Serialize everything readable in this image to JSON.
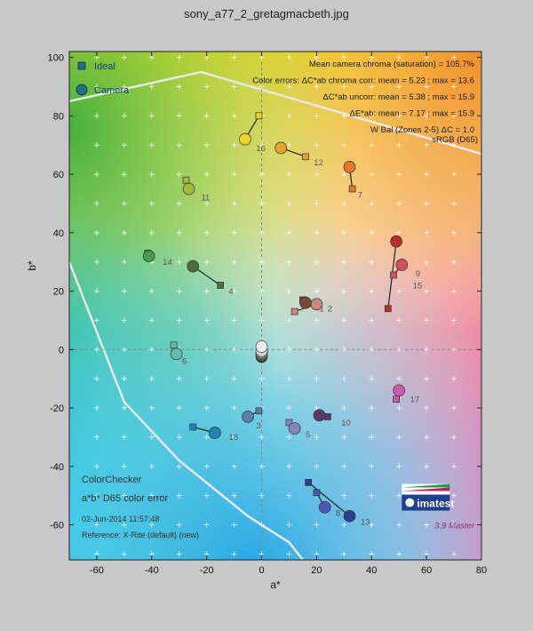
{
  "title": "sony_a77_2_gretagmacbeth.jpg",
  "chart_data": {
    "type": "scatter",
    "xlabel": "a*",
    "ylabel": "b*",
    "xlim": [
      -70,
      80
    ],
    "ylim": [
      -72,
      102
    ],
    "xticks": [
      -60,
      -40,
      -20,
      0,
      20,
      40,
      60,
      80
    ],
    "yticks": [
      -60,
      -40,
      -20,
      0,
      20,
      40,
      60,
      80,
      100
    ],
    "grid": true,
    "legend": {
      "placement": "top-left",
      "entries": [
        {
          "label": "Ideal",
          "marker": "square"
        },
        {
          "label": "Camera",
          "marker": "circle"
        }
      ]
    },
    "info_lines": [
      "Mean camera chroma (saturation) = 105.7%",
      "Color errors: ΔC*ab chroma corr:  mean = 5.23 ;  max = 13.6",
      "ΔC*ab uncorr:  mean = 5.38 ;  max = 15.9",
      "ΔE*ab:  mean = 7.17 ;  max = 15.9",
      "W Bal (Zones 2-5) ΔC = 1.0",
      "sRGB (D65)"
    ],
    "bottom_left": [
      "ColorChecker",
      "a*b* D65 color error",
      "02-Jun-2014 11:57:48",
      "Reference: X-Rite (default) (new)"
    ],
    "logo": "imatest",
    "version": "3.9 Master",
    "gamut_label": "sRGB (D65)",
    "series": [
      {
        "name": "Ideal",
        "marker": "square"
      },
      {
        "name": "Camera",
        "marker": "circle"
      }
    ],
    "patches": [
      {
        "id": "1",
        "ideal": [
          15,
          17
        ],
        "camera": [
          16,
          16
        ],
        "color": "#7a4a38"
      },
      {
        "id": "2",
        "ideal": [
          12,
          13
        ],
        "camera": [
          20,
          15.5
        ],
        "color": "#c88a78"
      },
      {
        "id": "3",
        "ideal": [
          -1,
          -21
        ],
        "camera": [
          -5,
          -23
        ],
        "color": "#5f7fa6"
      },
      {
        "id": "4",
        "ideal": [
          -15,
          22
        ],
        "camera": [
          -25,
          28.5
        ],
        "color": "#4f6d38"
      },
      {
        "id": "5",
        "ideal": [
          10,
          -25
        ],
        "camera": [
          12,
          -27
        ],
        "color": "#8488b8"
      },
      {
        "id": "6",
        "ideal": [
          -32,
          1.5
        ],
        "camera": [
          -31,
          -1.5
        ],
        "color": "#62bcab"
      },
      {
        "id": "7",
        "ideal": [
          33,
          55
        ],
        "camera": [
          32,
          62.5
        ],
        "color": "#e07a2a"
      },
      {
        "id": "8",
        "ideal": [
          20,
          -49
        ],
        "camera": [
          23,
          -54
        ],
        "color": "#4a5ab0"
      },
      {
        "id": "9",
        "ideal": [
          48,
          25.5
        ],
        "camera": [
          51,
          29
        ],
        "color": "#d05060"
      },
      {
        "id": "10",
        "ideal": [
          24,
          -23
        ],
        "camera": [
          21,
          -22.5
        ],
        "color": "#5a3a6a"
      },
      {
        "id": "11",
        "ideal": [
          -27.5,
          58
        ],
        "camera": [
          -26.5,
          55
        ],
        "color": "#9cbc3a"
      },
      {
        "id": "12",
        "ideal": [
          16,
          66
        ],
        "camera": [
          7,
          69
        ],
        "color": "#e8a030"
      },
      {
        "id": "13",
        "ideal": [
          17,
          -45.5
        ],
        "camera": [
          32,
          -57
        ],
        "color": "#2c3e94"
      },
      {
        "id": "14",
        "ideal": [
          -41.5,
          33
        ],
        "camera": [
          -41,
          32
        ],
        "color": "#469a4c"
      },
      {
        "id": "15",
        "ideal": [
          46,
          14
        ],
        "camera": [
          49,
          37
        ],
        "color": "#b82e2e"
      },
      {
        "id": "16",
        "ideal": [
          -1,
          80
        ],
        "camera": [
          -6,
          72
        ],
        "color": "#ead42a"
      },
      {
        "id": "17",
        "ideal": [
          49,
          -17
        ],
        "camera": [
          50,
          -14
        ],
        "color": "#c85aa8"
      },
      {
        "id": "18",
        "ideal": [
          -25,
          -26.5
        ],
        "camera": [
          -17,
          -28.5
        ],
        "color": "#1e86b0"
      },
      {
        "id": "19",
        "ideal": [
          0,
          1
        ],
        "camera": [
          0,
          1
        ],
        "color": "#f2f2f2"
      },
      {
        "id": "20",
        "ideal": [
          0,
          0
        ],
        "camera": [
          0,
          -0.5
        ],
        "color": "#cfcfcf"
      },
      {
        "id": "21",
        "ideal": [
          0,
          -0.5
        ],
        "camera": [
          0,
          -1
        ],
        "color": "#a3a3a3"
      },
      {
        "id": "22",
        "ideal": [
          0,
          -1
        ],
        "camera": [
          0,
          -1.5
        ],
        "color": "#7a7a7a"
      },
      {
        "id": "23",
        "ideal": [
          0,
          -1.5
        ],
        "camera": [
          0,
          -2
        ],
        "color": "#555555"
      },
      {
        "id": "24",
        "ideal": [
          0,
          -2
        ],
        "camera": [
          0,
          -2.5
        ],
        "color": "#333333"
      }
    ],
    "patch_labels": [
      {
        "text": "1",
        "at": [
          21,
          13
        ]
      },
      {
        "text": "2",
        "at": [
          24,
          13
        ]
      },
      {
        "text": "3",
        "at": [
          -2,
          -27
        ]
      },
      {
        "text": "4",
        "at": [
          -12,
          19
        ]
      },
      {
        "text": "5",
        "at": [
          16,
          -30
        ]
      },
      {
        "text": "6",
        "at": [
          -29,
          -5
        ]
      },
      {
        "text": "7",
        "at": [
          35,
          52
        ]
      },
      {
        "text": "8",
        "at": [
          27,
          -57
        ]
      },
      {
        "text": "9",
        "at": [
          56,
          25
        ]
      },
      {
        "text": "10",
        "at": [
          29,
          -26
        ]
      },
      {
        "text": "11",
        "at": [
          -22,
          51
        ]
      },
      {
        "text": "12",
        "at": [
          19,
          63
        ]
      },
      {
        "text": "13",
        "at": [
          36,
          -60
        ]
      },
      {
        "text": "14",
        "at": [
          -36,
          29
        ]
      },
      {
        "text": "15",
        "at": [
          55,
          21
        ]
      },
      {
        "text": "16",
        "at": [
          -2,
          68
        ]
      },
      {
        "text": "17",
        "at": [
          54,
          -18
        ]
      },
      {
        "text": "18",
        "at": [
          -12,
          -31
        ]
      }
    ]
  }
}
